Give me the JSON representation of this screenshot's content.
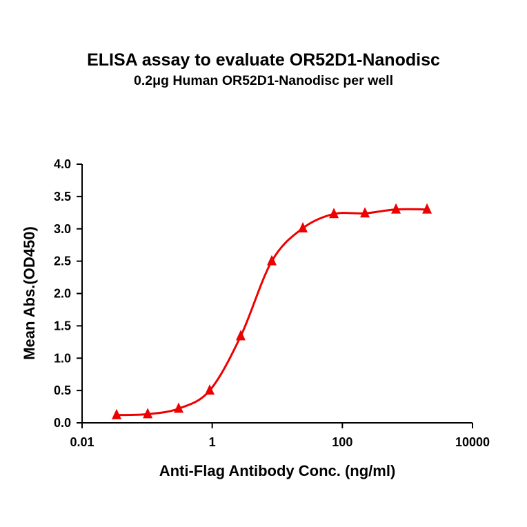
{
  "chart_data": {
    "type": "line",
    "title": "ELISA assay to evaluate OR52D1-Nanodisc",
    "subtitle": "0.2μg Human OR52D1-Nanodisc per well",
    "xlabel": "Anti-Flag Antibody Conc. (ng/ml)",
    "ylabel": "Mean Abs.(OD450)",
    "x_scale": "log",
    "xlim": [
      0.01,
      10000
    ],
    "ylim": [
      0,
      4.0
    ],
    "x_ticks": [
      0.01,
      1,
      100,
      10000
    ],
    "x_tick_labels": [
      "0.01",
      "1",
      "100",
      "10000"
    ],
    "y_ticks": [
      0.0,
      0.5,
      1.0,
      1.5,
      2.0,
      2.5,
      3.0,
      3.5,
      4.0
    ],
    "y_tick_labels": [
      "0.0",
      "0.5",
      "1.0",
      "1.5",
      "2.0",
      "2.5",
      "3.0",
      "3.5",
      "4.0"
    ],
    "grid": false,
    "legend": "none",
    "marker": "triangle",
    "color": "#ee0000",
    "series": [
      {
        "x": [
          0.0339,
          0.102,
          0.305,
          0.914,
          2.74,
          8.23,
          24.7,
          74.1,
          222.2,
          666.7,
          2000
        ],
        "y": [
          0.12,
          0.135,
          0.22,
          0.5,
          1.34,
          2.5,
          3.01,
          3.23,
          3.24,
          3.3,
          3.3
        ]
      }
    ]
  }
}
